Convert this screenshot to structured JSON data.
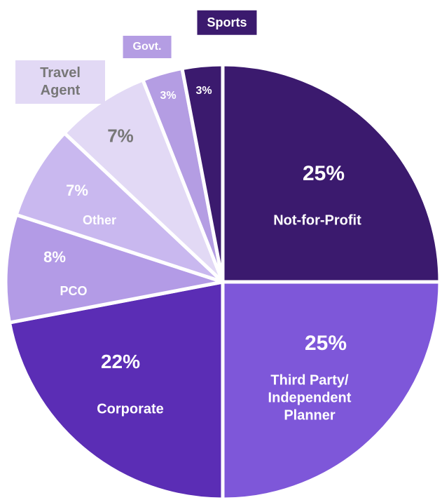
{
  "chart_data": {
    "type": "pie",
    "categories": [
      "Not-for-Profit",
      "Third Party/ Independent Planner",
      "Corporate",
      "PCO",
      "Other",
      "Travel Agent",
      "Govt.",
      "Sports"
    ],
    "values": [
      25,
      25,
      22,
      8,
      7,
      7,
      3,
      3
    ],
    "value_labels": [
      "25%",
      "25%",
      "22%",
      "8%",
      "7%",
      "7%",
      "3%",
      "3%"
    ],
    "colors": [
      "#3b1a6e",
      "#7e57d9",
      "#5b2db5",
      "#b39be6",
      "#c9b8ef",
      "#e2d9f5",
      "#b49de3",
      "#3b1a6e"
    ]
  }
}
